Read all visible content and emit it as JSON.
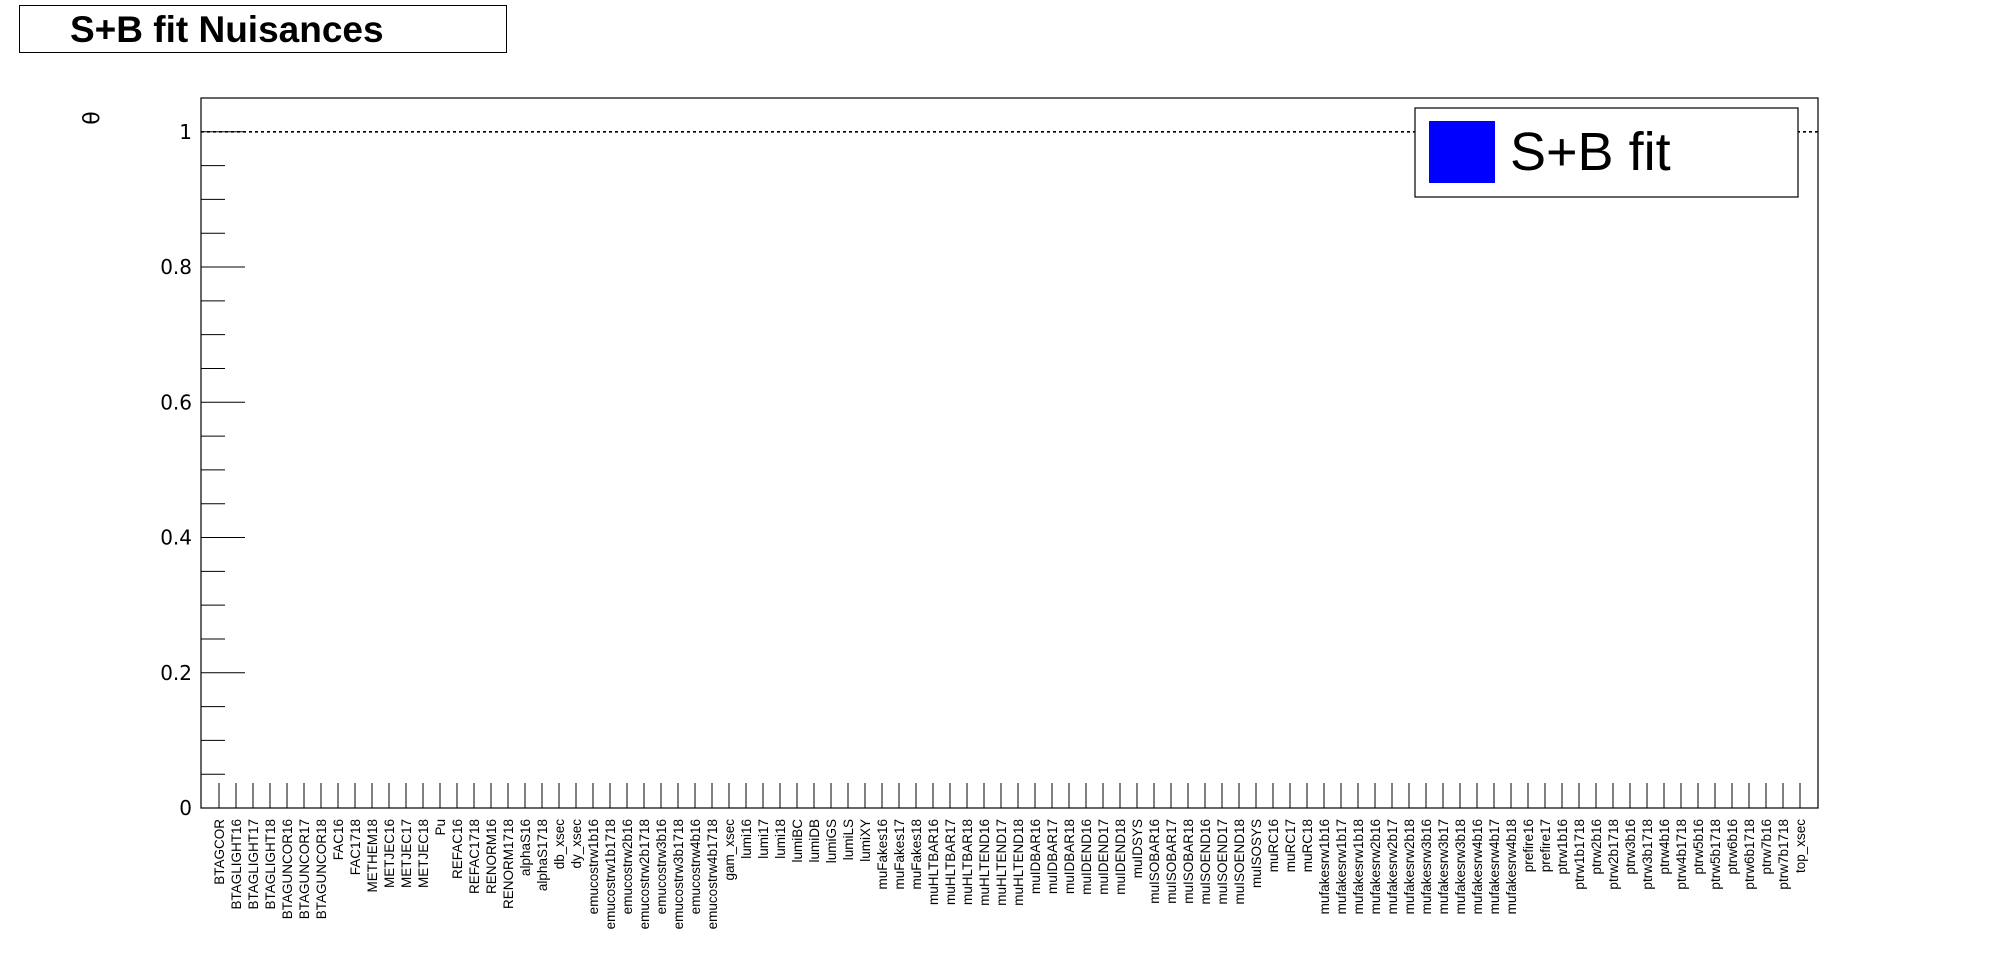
{
  "title": "S+B fit Nuisances",
  "chart_data": {
    "type": "bar",
    "ylabel": "θ",
    "ylim": [
      0,
      1.05
    ],
    "yticks": [
      "0",
      "0.2",
      "0.4",
      "0.6",
      "0.8",
      "1"
    ],
    "reference_line": 1,
    "legend": {
      "label": "S+B fit",
      "color": "#0000ff",
      "position": "top-right"
    },
    "categories": [
      "BTAGCOR",
      "BTAGLIGHT16",
      "BTAGLIGHT17",
      "BTAGLIGHT18",
      "BTAGUNCOR16",
      "BTAGUNCOR17",
      "BTAGUNCOR18",
      "FAC16",
      "FAC1718",
      "METHEM18",
      "METJEC16",
      "METJEC17",
      "METJEC18",
      "Pu",
      "REFAC16",
      "REFAC1718",
      "RENORM16",
      "RENORM1718",
      "alphaS16",
      "alphaS1718",
      "db_xsec",
      "dy_xsec",
      "emucostrw1b16",
      "emucostrw1b1718",
      "emucostrw2b16",
      "emucostrw2b1718",
      "emucostrw3b16",
      "emucostrw3b1718",
      "emucostrw4b16",
      "emucostrw4b1718",
      "gam_xsec",
      "lumi16",
      "lumi17",
      "lumi18",
      "lumiBC",
      "lumiDB",
      "lumiGS",
      "lumiLS",
      "lumiXY",
      "muFakes16",
      "muFakes17",
      "muFakes18",
      "muHLTBAR16",
      "muHLTBAR17",
      "muHLTBAR18",
      "muHLTEND16",
      "muHLTEND17",
      "muHLTEND18",
      "muIDBAR16",
      "muIDBAR17",
      "muIDBAR18",
      "muIDEND16",
      "muIDEND17",
      "muIDEND18",
      "muIDSYS",
      "muISOBAR16",
      "muISOBAR17",
      "muISOBAR18",
      "muISOEND16",
      "muISOEND17",
      "muISOEND18",
      "muISOSYS",
      "muRC16",
      "muRC17",
      "muRC18",
      "mufakesrw1b16",
      "mufakesrw1b17",
      "mufakesrw1b18",
      "mufakesrw2b16",
      "mufakesrw2b17",
      "mufakesrw2b18",
      "mufakesrw3b16",
      "mufakesrw3b17",
      "mufakesrw3b18",
      "mufakesrw4b16",
      "mufakesrw4b17",
      "mufakesrw4b18",
      "prefire16",
      "prefire17",
      "ptrw1b16",
      "ptrw1b1718",
      "ptrw2b16",
      "ptrw2b1718",
      "ptrw3b16",
      "ptrw3b1718",
      "ptrw4b16",
      "ptrw4b1718",
      "ptrw5b16",
      "ptrw5b1718",
      "ptrw6b16",
      "ptrw6b1718",
      "ptrw7b16",
      "ptrw7b1718",
      "top_xsec"
    ],
    "values": [
      0,
      0,
      0,
      0,
      0,
      0,
      0,
      0,
      0,
      0,
      0,
      0,
      0,
      0,
      0,
      0,
      0,
      0,
      0,
      0,
      0,
      0,
      0,
      0,
      0,
      0,
      0,
      0,
      0,
      0,
      0,
      0,
      0,
      0,
      0,
      0,
      0,
      0,
      0,
      0,
      0,
      0,
      0,
      0,
      0,
      0,
      0,
      0,
      0,
      0,
      0,
      0,
      0,
      0,
      0,
      0,
      0,
      0,
      0,
      0,
      0,
      0,
      0,
      0,
      0,
      0,
      0,
      0,
      0,
      0,
      0,
      0,
      0,
      0,
      0,
      0,
      0,
      0,
      0,
      0,
      0,
      0,
      0,
      0,
      0,
      0,
      0,
      0,
      0,
      0,
      0,
      0,
      0,
      0
    ]
  }
}
